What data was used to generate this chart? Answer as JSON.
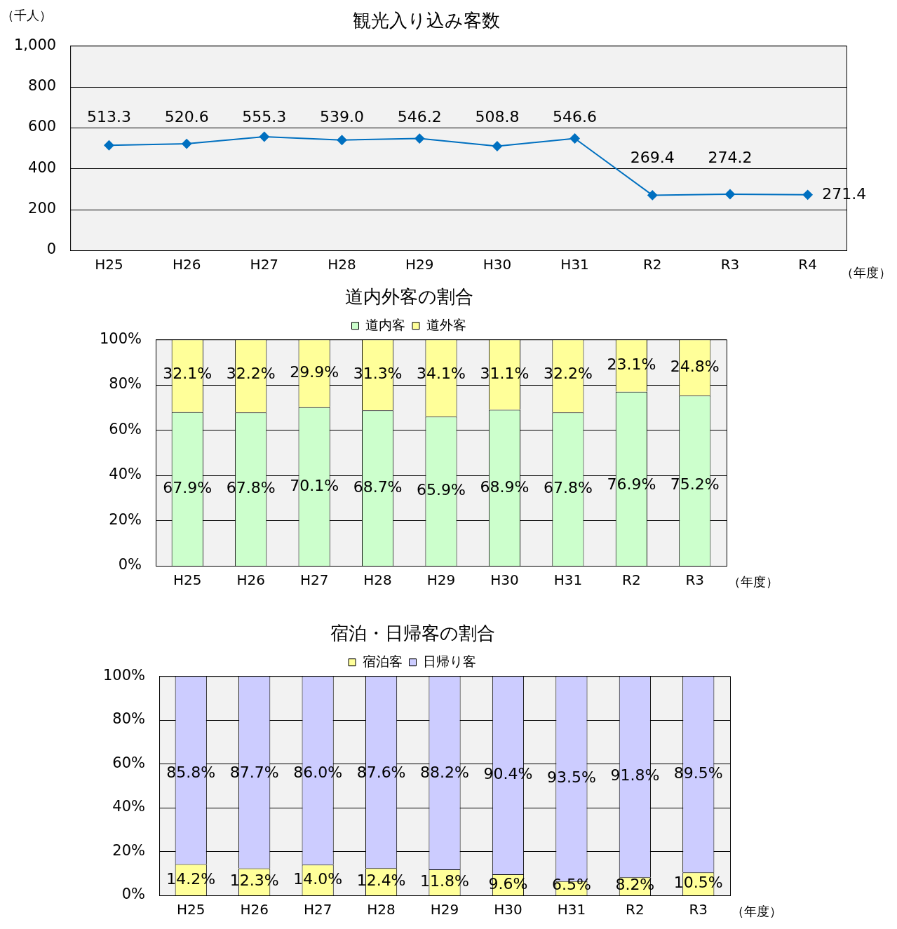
{
  "chart_data": [
    {
      "type": "line",
      "title": "観光入り込み客数",
      "ylabel": "（千人）",
      "xlabel": "（年度）",
      "categories": [
        "H25",
        "H26",
        "H27",
        "H28",
        "H29",
        "H30",
        "H31",
        "R2",
        "R3",
        "R4"
      ],
      "series": [
        {
          "color": "#0070c0",
          "values": [
            513.3,
            520.6,
            555.3,
            539.0,
            546.2,
            508.8,
            546.6,
            269.4,
            274.2,
            271.4
          ],
          "value_labels": [
            "513.3",
            "520.6",
            "555.3",
            "539.0",
            "546.2",
            "508.8",
            "546.6",
            "269.4",
            "274.2",
            "271.4"
          ]
        }
      ],
      "ylim": [
        0,
        1000
      ],
      "yticks": [
        0,
        200,
        400,
        600,
        800,
        {
          "value": 1000,
          "label": "1,000"
        }
      ],
      "grid": "y",
      "marker": "diamond"
    },
    {
      "type": "bar",
      "stacked": true,
      "title": "道内外客の割合",
      "xlabel": "（年度）",
      "categories": [
        "H25",
        "H26",
        "H27",
        "H28",
        "H29",
        "H30",
        "H31",
        "R2",
        "R3"
      ],
      "series": [
        {
          "name": "道内客",
          "color": "#ccffcc",
          "values": [
            67.9,
            67.8,
            70.1,
            68.7,
            65.9,
            68.9,
            67.8,
            76.9,
            75.2
          ],
          "value_labels": [
            "67.9%",
            "67.8%",
            "70.1%",
            "68.7%",
            "65.9%",
            "68.9%",
            "67.8%",
            "76.9%",
            "75.2%"
          ]
        },
        {
          "name": "道外客",
          "color": "#ffff99",
          "values": [
            32.1,
            32.2,
            29.9,
            31.3,
            34.1,
            31.1,
            32.2,
            23.1,
            24.8
          ],
          "value_labels": [
            "32.1%",
            "32.2%",
            "29.9%",
            "31.3%",
            "34.1%",
            "31.1%",
            "32.2%",
            "23.1%",
            "24.8%"
          ]
        }
      ],
      "ylim": [
        0,
        100
      ],
      "yticks": [
        {
          "value": 0,
          "label": "0%"
        },
        {
          "value": 20,
          "label": "20%"
        },
        {
          "value": 40,
          "label": "40%"
        },
        {
          "value": 60,
          "label": "60%"
        },
        {
          "value": 80,
          "label": "80%"
        },
        {
          "value": 100,
          "label": "100%"
        }
      ],
      "grid": "y",
      "legend": "top"
    },
    {
      "type": "bar",
      "stacked": true,
      "title": "宿泊・日帰客の割合",
      "xlabel": "（年度）",
      "categories": [
        "H25",
        "H26",
        "H27",
        "H28",
        "H29",
        "H30",
        "H31",
        "R2",
        "R3"
      ],
      "series": [
        {
          "name": "宿泊客",
          "color": "#ffff99",
          "values": [
            14.2,
            12.3,
            14.0,
            12.4,
            11.8,
            9.6,
            6.5,
            8.2,
            10.5
          ],
          "value_labels": [
            "14.2%",
            "12.3%",
            "14.0%",
            "12.4%",
            "11.8%",
            "9.6%",
            "6.5%",
            "8.2%",
            "10.5%"
          ]
        },
        {
          "name": "日帰り客",
          "color": "#ccccff",
          "values": [
            85.8,
            87.7,
            86.0,
            87.6,
            88.2,
            90.4,
            93.5,
            91.8,
            89.5
          ],
          "value_labels": [
            "85.8%",
            "87.7%",
            "86.0%",
            "87.6%",
            "88.2%",
            "90.4%",
            "93.5%",
            "91.8%",
            "89.5%"
          ]
        }
      ],
      "ylim": [
        0,
        100
      ],
      "yticks": [
        {
          "value": 0,
          "label": "0%"
        },
        {
          "value": 20,
          "label": "20%"
        },
        {
          "value": 40,
          "label": "40%"
        },
        {
          "value": 60,
          "label": "60%"
        },
        {
          "value": 80,
          "label": "80%"
        },
        {
          "value": 100,
          "label": "100%"
        }
      ],
      "grid": "y",
      "legend": "top"
    }
  ]
}
